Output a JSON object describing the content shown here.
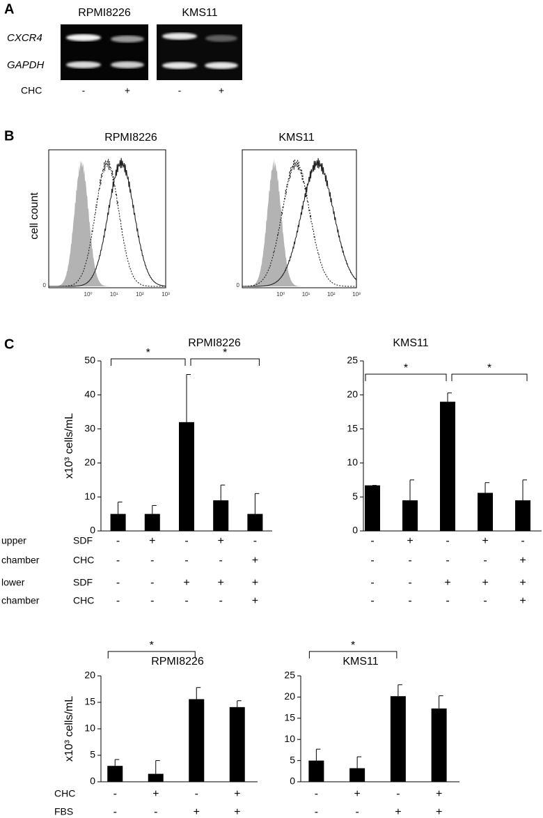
{
  "panel_a": {
    "label": "A",
    "cell_lines": [
      "RPMI8226",
      "KMS11"
    ],
    "genes": [
      "CXCR4",
      "GAPDH"
    ],
    "treatment": "CHC",
    "conditions": [
      "-",
      "+"
    ]
  },
  "panel_b": {
    "label": "B",
    "titles": [
      "RPMI8226",
      "KMS11"
    ],
    "ylabel": "cell count",
    "xscale": "log",
    "xlim": [
      0.03,
      1000
    ],
    "xticks": [
      {
        "value": 1,
        "label": "10⁰"
      },
      {
        "value": 10,
        "label": "10¹"
      },
      {
        "value": 100,
        "label": "10²"
      },
      {
        "value": 1000,
        "label": "10³"
      }
    ],
    "yticks": [
      0
    ]
  },
  "panel_c_label": "C",
  "chart_data": [
    {
      "type": "bar",
      "title": "RPMI8226",
      "ylabel": "x10³ cells/mL",
      "color": "#000000",
      "values": [
        5,
        5,
        32,
        9,
        5
      ],
      "errors": [
        3.5,
        2.5,
        14,
        4.5,
        6
      ],
      "ylim": [
        0,
        50
      ],
      "yticks": [
        0,
        10,
        20,
        30,
        40,
        50
      ],
      "significance": [
        {
          "bars": [
            0,
            2
          ],
          "label": "*"
        },
        {
          "bars": [
            2,
            4
          ],
          "label": "*"
        }
      ],
      "condition_rows": [
        {
          "group": "upper",
          "name": "SDF",
          "marks": [
            "-",
            "+",
            "-",
            "+",
            "-"
          ]
        },
        {
          "group": "chamber",
          "name": "CHC",
          "marks": [
            "-",
            "-",
            "-",
            "-",
            "+"
          ]
        },
        {
          "group": "lower",
          "name": "SDF",
          "marks": [
            "-",
            "-",
            "+",
            "+",
            "+"
          ]
        },
        {
          "group": "chamber",
          "name": "CHC",
          "marks": [
            "-",
            "-",
            "-",
            "-",
            "+"
          ]
        }
      ]
    },
    {
      "type": "bar",
      "title": "KMS11",
      "color": "#000000",
      "values": [
        6.7,
        4.5,
        19,
        5.6,
        4.5
      ],
      "errors": [
        0,
        3,
        1.3,
        1.5,
        3
      ],
      "ylim": [
        0,
        25
      ],
      "yticks": [
        0,
        5,
        10,
        15,
        20,
        25
      ],
      "significance": [
        {
          "bars": [
            0,
            2
          ],
          "label": "*"
        },
        {
          "bars": [
            2,
            4
          ],
          "label": "*"
        }
      ],
      "condition_rows": [
        {
          "marks": [
            "-",
            "+",
            "-",
            "+",
            "-"
          ]
        },
        {
          "marks": [
            "-",
            "-",
            "-",
            "-",
            "+"
          ]
        },
        {
          "marks": [
            "-",
            "-",
            "+",
            "+",
            "+"
          ]
        },
        {
          "marks": [
            "-",
            "-",
            "-",
            "-",
            "+"
          ]
        }
      ]
    },
    {
      "type": "bar",
      "title": "RPMI8226",
      "ylabel": "x10³ cells/mL",
      "color": "#000000",
      "values": [
        3,
        1.5,
        15.6,
        14.1
      ],
      "errors": [
        1.2,
        2.5,
        2.2,
        1.2
      ],
      "ylim": [
        0,
        20
      ],
      "yticks": [
        0,
        5,
        10,
        15,
        20
      ],
      "significance": [
        {
          "bars": [
            0,
            2
          ],
          "label": "*"
        }
      ],
      "condition_rows": [
        {
          "name": "CHC",
          "marks": [
            "-",
            "+",
            "-",
            "+"
          ]
        },
        {
          "name": "FBS",
          "marks": [
            "-",
            "-",
            "+",
            "+"
          ]
        }
      ]
    },
    {
      "type": "bar",
      "title": "KMS11",
      "color": "#000000",
      "values": [
        5,
        3.2,
        20.2,
        17.3
      ],
      "errors": [
        2.7,
        2.7,
        2.7,
        3
      ],
      "ylim": [
        0,
        25
      ],
      "yticks": [
        0,
        5,
        10,
        15,
        20,
        25
      ],
      "significance": [
        {
          "bars": [
            0,
            2
          ],
          "label": "*"
        }
      ],
      "condition_rows": [
        {
          "marks": [
            "-",
            "+",
            "-",
            "+"
          ]
        },
        {
          "marks": [
            "-",
            "-",
            "+",
            "+"
          ]
        }
      ]
    }
  ]
}
